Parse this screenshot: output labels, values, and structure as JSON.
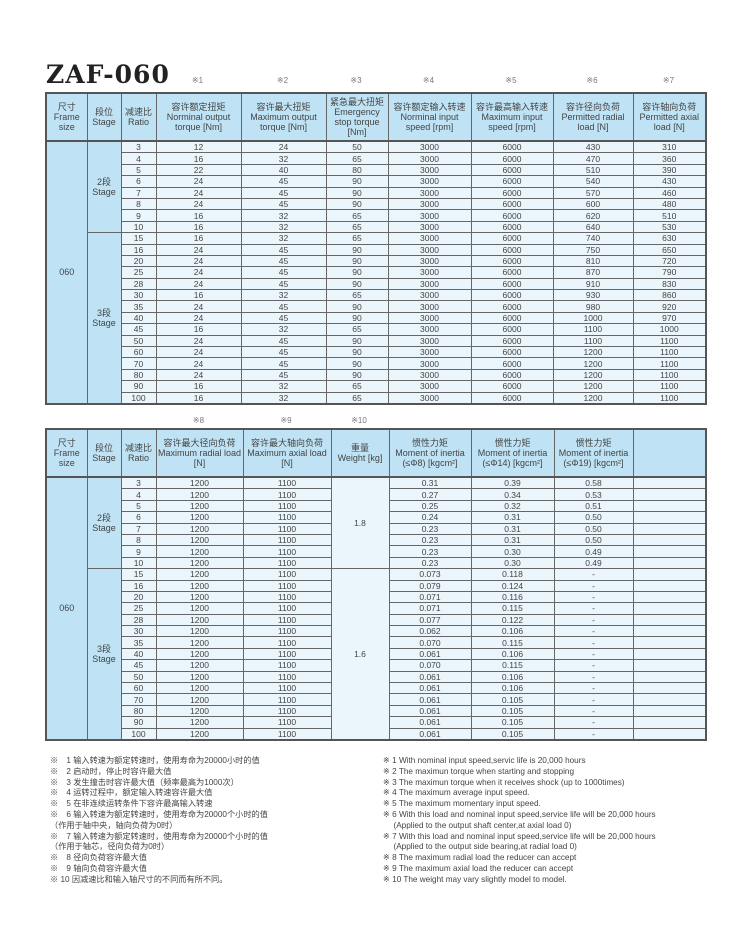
{
  "title": "ZAF-060",
  "table1": {
    "note_marks": [
      "※1",
      "※2",
      "※3",
      "※4",
      "※5",
      "※6",
      "※7"
    ],
    "headers": [
      {
        "zh": "尺寸",
        "en": "Frame size"
      },
      {
        "zh": "段位",
        "en": "Stage"
      },
      {
        "zh": "减速比",
        "en": "Ratio"
      },
      {
        "zh": "容许额定扭矩",
        "en": "Norminal output torque [Nm]"
      },
      {
        "zh": "容许最大扭矩",
        "en": "Maximum output torque [Nm]"
      },
      {
        "zh": "紧急最大扭矩",
        "en": "Emergency stop torque [Nm]"
      },
      {
        "zh": "容许额定输入转速",
        "en": "Norminal input speed [rpm]"
      },
      {
        "zh": "容许最高输入转速",
        "en": "Maximum input speed [rpm]"
      },
      {
        "zh": "容许径向负荷",
        "en": "Permitted radial load [N]"
      },
      {
        "zh": "容许轴向负荷",
        "en": "Permitted axial load [N]"
      }
    ],
    "frame": "060",
    "stage2": "2段 Stage",
    "stage3": "3段 Stage",
    "rows": [
      [
        "3",
        "12",
        "24",
        "50",
        "3000",
        "6000",
        "430",
        "310"
      ],
      [
        "4",
        "16",
        "32",
        "65",
        "3000",
        "6000",
        "470",
        "360"
      ],
      [
        "5",
        "22",
        "40",
        "80",
        "3000",
        "6000",
        "510",
        "390"
      ],
      [
        "6",
        "24",
        "45",
        "90",
        "3000",
        "6000",
        "540",
        "430"
      ],
      [
        "7",
        "24",
        "45",
        "90",
        "3000",
        "6000",
        "570",
        "460"
      ],
      [
        "8",
        "24",
        "45",
        "90",
        "3000",
        "6000",
        "600",
        "480"
      ],
      [
        "9",
        "16",
        "32",
        "65",
        "3000",
        "6000",
        "620",
        "510"
      ],
      [
        "10",
        "16",
        "32",
        "65",
        "3000",
        "6000",
        "640",
        "530"
      ],
      [
        "15",
        "16",
        "32",
        "65",
        "3000",
        "6000",
        "740",
        "630"
      ],
      [
        "16",
        "24",
        "45",
        "90",
        "3000",
        "6000",
        "750",
        "650"
      ],
      [
        "20",
        "24",
        "45",
        "90",
        "3000",
        "6000",
        "810",
        "720"
      ],
      [
        "25",
        "24",
        "45",
        "90",
        "3000",
        "6000",
        "870",
        "790"
      ],
      [
        "28",
        "24",
        "45",
        "90",
        "3000",
        "6000",
        "910",
        "830"
      ],
      [
        "30",
        "16",
        "32",
        "65",
        "3000",
        "6000",
        "930",
        "860"
      ],
      [
        "35",
        "24",
        "45",
        "90",
        "3000",
        "6000",
        "980",
        "920"
      ],
      [
        "40",
        "24",
        "45",
        "90",
        "3000",
        "6000",
        "1000",
        "970"
      ],
      [
        "45",
        "16",
        "32",
        "65",
        "3000",
        "6000",
        "1100",
        "1000"
      ],
      [
        "50",
        "24",
        "45",
        "90",
        "3000",
        "6000",
        "1100",
        "1100"
      ],
      [
        "60",
        "24",
        "45",
        "90",
        "3000",
        "6000",
        "1200",
        "1100"
      ],
      [
        "70",
        "24",
        "45",
        "90",
        "3000",
        "6000",
        "1200",
        "1100"
      ],
      [
        "80",
        "24",
        "45",
        "90",
        "3000",
        "6000",
        "1200",
        "1100"
      ],
      [
        "90",
        "16",
        "32",
        "65",
        "3000",
        "6000",
        "1200",
        "1100"
      ],
      [
        "100",
        "16",
        "32",
        "65",
        "3000",
        "6000",
        "1200",
        "1100"
      ]
    ]
  },
  "table2": {
    "note_marks": [
      "※8",
      "※9",
      "※10"
    ],
    "headers": [
      {
        "zh": "尺寸",
        "en": "Frame size"
      },
      {
        "zh": "段位",
        "en": "Stage"
      },
      {
        "zh": "减速比",
        "en": "Ratio"
      },
      {
        "zh": "容许最大径向负荷",
        "en": "Maximum radial load [N]"
      },
      {
        "zh": "容许最大轴向负荷",
        "en": "Maximum axial load [N]"
      },
      {
        "zh": "重量",
        "en": "Weight [kg]"
      },
      {
        "zh": "惯性力矩",
        "en": "Moment of inertia (≤Φ8) [kgcm²]"
      },
      {
        "zh": "惯性力矩",
        "en": "Moment of inertia (≤Φ14) [kgcm²]"
      },
      {
        "zh": "惯性力矩",
        "en": "Moment of inertia (≤Φ19) [kgcm²]"
      },
      {
        "zh": "",
        "en": ""
      }
    ],
    "frame": "060",
    "stage2": "2段 Stage",
    "stage3": "3段 Stage",
    "weight2": "1.8",
    "weight3": "1.6",
    "rows": [
      [
        "3",
        "1200",
        "1100",
        "0.31",
        "0.39",
        "0.58"
      ],
      [
        "4",
        "1200",
        "1100",
        "0.27",
        "0.34",
        "0.53"
      ],
      [
        "5",
        "1200",
        "1100",
        "0.25",
        "0.32",
        "0.51"
      ],
      [
        "6",
        "1200",
        "1100",
        "0.24",
        "0.31",
        "0.50"
      ],
      [
        "7",
        "1200",
        "1100",
        "0.23",
        "0.31",
        "0.50"
      ],
      [
        "8",
        "1200",
        "1100",
        "0.23",
        "0.31",
        "0.50"
      ],
      [
        "9",
        "1200",
        "1100",
        "0.23",
        "0.30",
        "0.49"
      ],
      [
        "10",
        "1200",
        "1100",
        "0.23",
        "0.30",
        "0.49"
      ],
      [
        "15",
        "1200",
        "1100",
        "0.073",
        "0.118",
        "-"
      ],
      [
        "16",
        "1200",
        "1100",
        "0.079",
        "0.124",
        "-"
      ],
      [
        "20",
        "1200",
        "1100",
        "0.071",
        "0.116",
        "-"
      ],
      [
        "25",
        "1200",
        "1100",
        "0.071",
        "0.115",
        "-"
      ],
      [
        "28",
        "1200",
        "1100",
        "0.077",
        "0.122",
        "-"
      ],
      [
        "30",
        "1200",
        "1100",
        "0.062",
        "0.106",
        "-"
      ],
      [
        "35",
        "1200",
        "1100",
        "0.070",
        "0.115",
        "-"
      ],
      [
        "40",
        "1200",
        "1100",
        "0.061",
        "0.106",
        "-"
      ],
      [
        "45",
        "1200",
        "1100",
        "0.070",
        "0.115",
        "-"
      ],
      [
        "50",
        "1200",
        "1100",
        "0.061",
        "0.106",
        "-"
      ],
      [
        "60",
        "1200",
        "1100",
        "0.061",
        "0.106",
        "-"
      ],
      [
        "70",
        "1200",
        "1100",
        "0.061",
        "0.105",
        "-"
      ],
      [
        "80",
        "1200",
        "1100",
        "0.061",
        "0.105",
        "-"
      ],
      [
        "90",
        "1200",
        "1100",
        "0.061",
        "0.105",
        "-"
      ],
      [
        "100",
        "1200",
        "1100",
        "0.061",
        "0.105",
        "-"
      ]
    ]
  },
  "notes_zh": [
    "※　1 输入转速为额定转速时，使用寿命为20000小时的值",
    "※　2 启动时，停止时容许最大值",
    "※　3 发生撞击时容许最大值（频率最高为1000次）",
    "※　4 运转过程中，额定输入转速容许最大值",
    "※　5 在非连续运转条件下容许最高输入转速",
    "※　6 输入转速为额定转速时，使用寿命为20000个小时的值",
    "（作用于轴中央，轴向负荷为0时）",
    "※　7 输入转速为额定转速时，使用寿命为20000个小时的值",
    "（作用于轴芯，径向负荷为0时）",
    "※　8 径向负荷容许最大值",
    "※　9 轴向负荷容许最大值",
    "※ 10 因减速比和输入轴尺寸的不同而有所不同。"
  ],
  "notes_en": [
    "※ 1 With nominal input speed,servic life is 20,000 hours",
    "※ 2 The maximun torque when starting and stopping",
    "※ 3 The maximun torque when it receives shock (up to 1000times)",
    "※ 4 The maximum average input speed.",
    "※ 5 The maximum momentary input speed.",
    "※ 6 With this load and nominal input speed,service life will be 20,000 hours",
    "　 (Applied to the output shaft center,at axial load 0)",
    "※ 7 With this load and nominal input speed,service life will be 20,000 hours",
    "　 (Applied to the output side bearing,at radial load 0)",
    "※ 8 The maximum radial load the reducer can accept",
    "※ 9 The maximum axial load the reducer can accept",
    "※ 10 The weight may vary  slightly  model to model."
  ]
}
